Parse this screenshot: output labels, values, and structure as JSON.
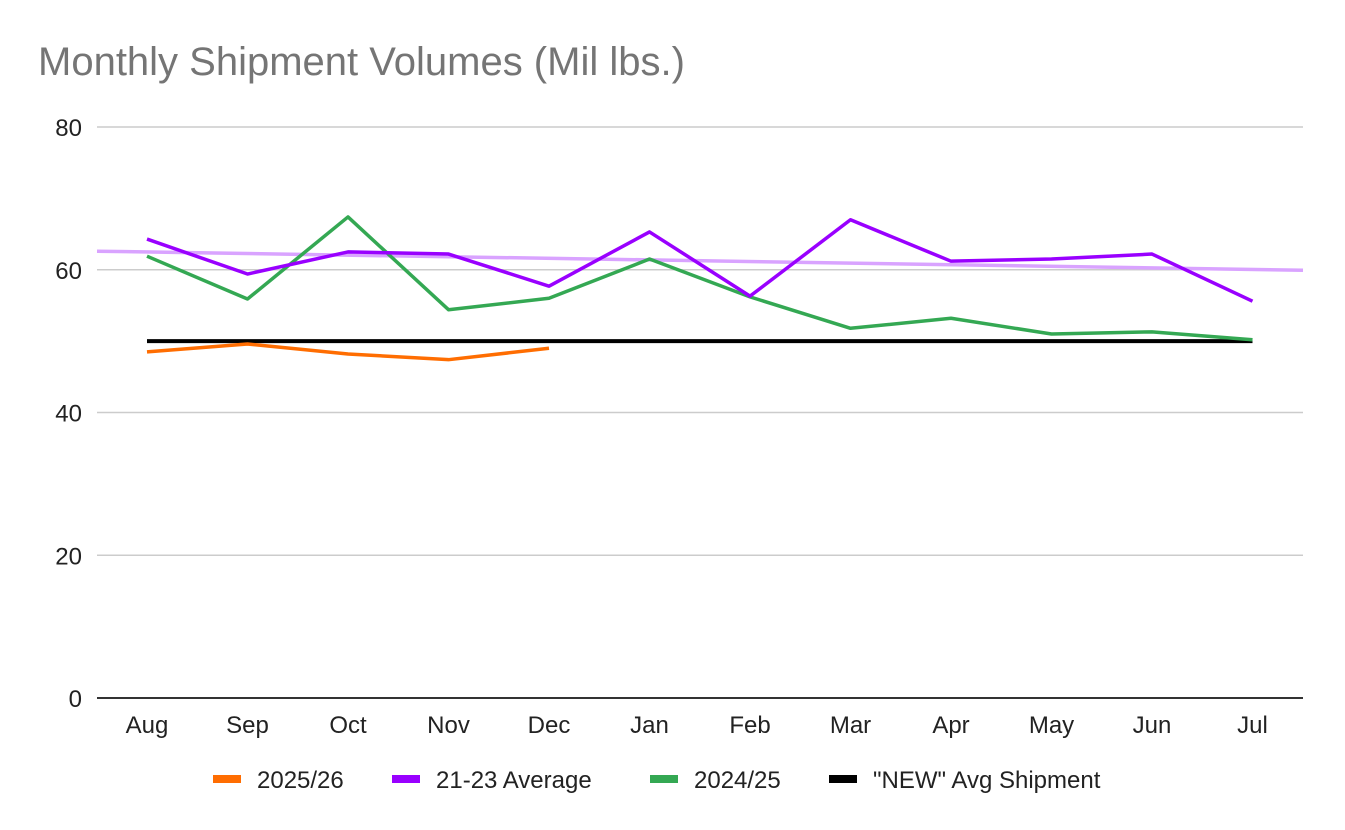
{
  "chart_data": {
    "type": "line",
    "title": "Monthly Shipment Volumes (Mil lbs.)",
    "xlabel": "",
    "ylabel": "",
    "categories": [
      "Aug",
      "Sep",
      "Oct",
      "Nov",
      "Dec",
      "Jan",
      "Feb",
      "Mar",
      "Apr",
      "May",
      "Jun",
      "Jul"
    ],
    "ylim": [
      0,
      80
    ],
    "yticks": [
      0,
      20,
      40,
      60,
      80
    ],
    "grid": true,
    "legend_position": "bottom",
    "series": [
      {
        "name": "2025/26",
        "color": "#ff6d01",
        "values": [
          48.5,
          49.6,
          48.2,
          47.4,
          49.0,
          null,
          null,
          null,
          null,
          null,
          null,
          null
        ]
      },
      {
        "name": "21-23 Average",
        "color": "#9900ff",
        "values": [
          64.3,
          59.4,
          62.5,
          62.2,
          57.7,
          65.3,
          56.3,
          67.0,
          61.2,
          61.5,
          62.2,
          55.6
        ],
        "trendline": {
          "color": "#d9a3ff",
          "type": "linear"
        }
      },
      {
        "name": "2024/25",
        "color": "#34a853",
        "values": [
          61.9,
          55.9,
          67.4,
          54.4,
          56.0,
          61.5,
          56.2,
          51.8,
          53.2,
          51.0,
          51.3,
          50.2
        ]
      },
      {
        "name": "\"NEW\" Avg Shipment",
        "color": "#000000",
        "values": [
          50,
          50,
          50,
          50,
          50,
          50,
          50,
          50,
          50,
          50,
          50,
          50
        ]
      }
    ]
  }
}
